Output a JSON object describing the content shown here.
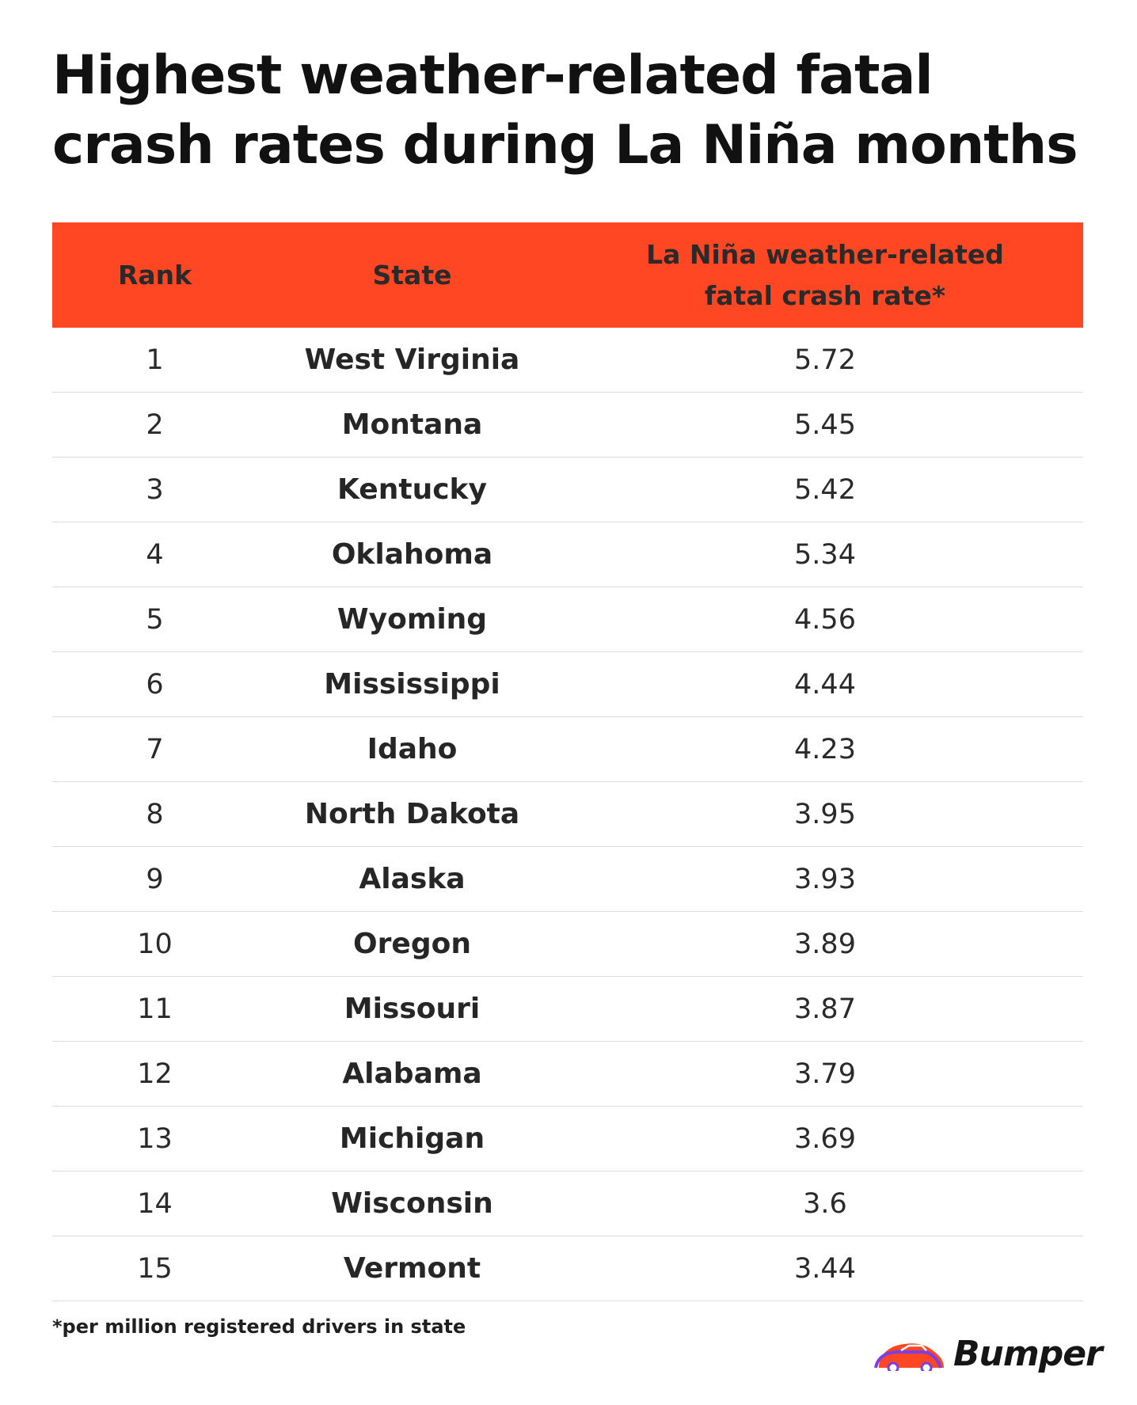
{
  "title": "Highest weather-related fatal crash rates during La Niña months",
  "chart_data": {
    "type": "table",
    "columns": [
      "Rank",
      "State",
      "La Niña weather-related fatal crash rate*"
    ],
    "rows": [
      {
        "rank": "1",
        "state": "West Virginia",
        "rate": "5.72"
      },
      {
        "rank": "2",
        "state": "Montana",
        "rate": "5.45"
      },
      {
        "rank": "3",
        "state": "Kentucky",
        "rate": "5.42"
      },
      {
        "rank": "4",
        "state": "Oklahoma",
        "rate": "5.34"
      },
      {
        "rank": "5",
        "state": "Wyoming",
        "rate": "4.56"
      },
      {
        "rank": "6",
        "state": "Mississippi",
        "rate": "4.44"
      },
      {
        "rank": "7",
        "state": "Idaho",
        "rate": "4.23"
      },
      {
        "rank": "8",
        "state": "North Dakota",
        "rate": "3.95"
      },
      {
        "rank": "9",
        "state": "Alaska",
        "rate": "3.93"
      },
      {
        "rank": "10",
        "state": "Oregon",
        "rate": "3.89"
      },
      {
        "rank": "11",
        "state": "Missouri",
        "rate": "3.87"
      },
      {
        "rank": "12",
        "state": "Alabama",
        "rate": "3.79"
      },
      {
        "rank": "13",
        "state": "Michigan",
        "rate": "3.69"
      },
      {
        "rank": "14",
        "state": "Wisconsin",
        "rate": "3.6"
      },
      {
        "rank": "15",
        "state": "Vermont",
        "rate": "3.44"
      }
    ],
    "footnote": "*per million registered drivers in state"
  },
  "brand": {
    "name": "Bumper",
    "accent_color": "#ff4823",
    "secondary_color": "#7b3fe4"
  }
}
